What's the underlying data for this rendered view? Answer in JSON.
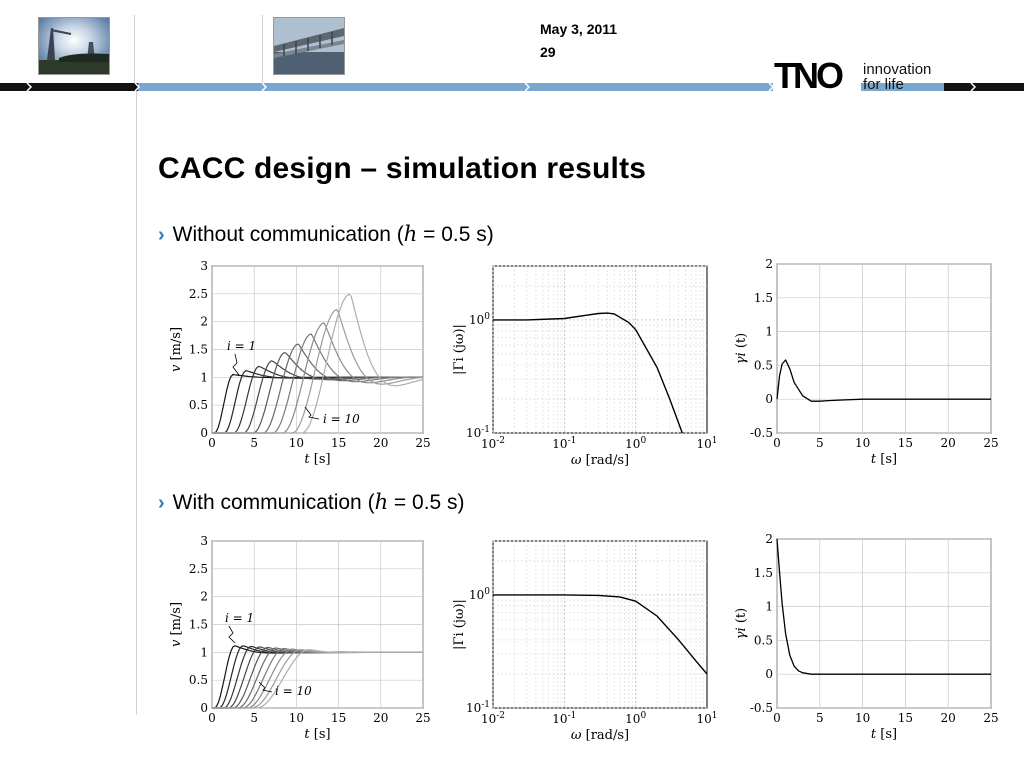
{
  "header": {
    "date": "May 3, 2011",
    "page_number": "29",
    "logo_mark": "TNO",
    "tagline_line1": "innovation",
    "tagline_line2": "for life",
    "accent_color": "#7aa7cf",
    "bar_color": "#111111"
  },
  "slide": {
    "title": "CACC design – simulation results",
    "bullets": [
      {
        "lead": "Without communication (",
        "math_var": "h",
        "tail": " = 0.5 s)"
      },
      {
        "lead": "With communication  (",
        "math_var": "h",
        "tail": " = 0.5 s)"
      }
    ]
  },
  "chart_data": [
    {
      "type": "line",
      "panel": "velocity",
      "condition": "without communication",
      "xlabel": "t [s]",
      "ylabel": "v [m/s]",
      "xlim": [
        0,
        25
      ],
      "ylim": [
        0,
        3
      ],
      "xticks": [
        "0",
        "5",
        "10",
        "15",
        "20",
        "25"
      ],
      "yticks": [
        "0",
        "0.5",
        "1",
        "1.5",
        "2",
        "2.5",
        "3"
      ],
      "annotations": [
        "i = 1",
        "i = 10"
      ],
      "grid": true,
      "series_count": 10,
      "peak_values": [
        1.05,
        1.12,
        1.2,
        1.3,
        1.45,
        1.6,
        1.78,
        1.98,
        2.22,
        2.5
      ],
      "steady_state": 1.0
    },
    {
      "type": "line",
      "panel": "string stability magnitude",
      "condition": "without communication",
      "xlabel": "ω [rad/s]",
      "ylabel": "|Γi (jω)|",
      "xscale": "log",
      "yscale": "log",
      "xlim": [
        0.01,
        10
      ],
      "ylim": [
        0.1,
        3
      ],
      "xticks": [
        "10^-2",
        "10^-1",
        "10^0",
        "10^1"
      ],
      "yticks": [
        "10^-1",
        "10^0"
      ],
      "grid": true,
      "x": [
        0.01,
        0.03,
        0.1,
        0.2,
        0.3,
        0.4,
        0.5,
        0.8,
        1,
        2,
        3,
        4.5
      ],
      "y": [
        1.0,
        1.0,
        1.03,
        1.1,
        1.14,
        1.15,
        1.13,
        0.95,
        0.82,
        0.38,
        0.2,
        0.1
      ]
    },
    {
      "type": "line",
      "panel": "impulse response",
      "condition": "without communication",
      "xlabel": "t [s]",
      "ylabel": "γi (t)",
      "xlim": [
        0,
        25
      ],
      "ylim": [
        -0.5,
        2
      ],
      "xticks": [
        "0",
        "5",
        "10",
        "15",
        "20",
        "25"
      ],
      "yticks": [
        "-0.5",
        "0",
        "0.5",
        "1",
        "1.5",
        "2"
      ],
      "grid": true,
      "x": [
        0,
        0.3,
        0.6,
        1.0,
        1.5,
        2,
        3,
        4,
        5,
        6,
        8,
        10,
        25
      ],
      "y": [
        0,
        0.35,
        0.52,
        0.58,
        0.45,
        0.25,
        0.05,
        -0.03,
        -0.03,
        -0.02,
        -0.01,
        0,
        0
      ]
    },
    {
      "type": "line",
      "panel": "velocity",
      "condition": "with communication",
      "xlabel": "t [s]",
      "ylabel": "v [m/s]",
      "xlim": [
        0,
        25
      ],
      "ylim": [
        0,
        3
      ],
      "xticks": [
        "0",
        "5",
        "10",
        "15",
        "20",
        "25"
      ],
      "yticks": [
        "0",
        "0.5",
        "1",
        "1.5",
        "2",
        "2.5",
        "3"
      ],
      "annotations": [
        "i = 1",
        "i = 10"
      ],
      "grid": true,
      "series_count": 10,
      "peak_values": [
        1.12,
        1.12,
        1.11,
        1.1,
        1.09,
        1.08,
        1.07,
        1.06,
        1.05,
        1.05
      ],
      "steady_state": 1.0
    },
    {
      "type": "line",
      "panel": "string stability magnitude",
      "condition": "with communication",
      "xlabel": "ω [rad/s]",
      "ylabel": "|Γi (jω)|",
      "xscale": "log",
      "yscale": "log",
      "xlim": [
        0.01,
        10
      ],
      "ylim": [
        0.1,
        3
      ],
      "xticks": [
        "10^-2",
        "10^-1",
        "10^0",
        "10^1"
      ],
      "yticks": [
        "10^-1",
        "10^0"
      ],
      "grid": true,
      "x": [
        0.01,
        0.1,
        0.3,
        0.6,
        1,
        2,
        4,
        7,
        10
      ],
      "y": [
        1.0,
        1.0,
        0.99,
        0.96,
        0.88,
        0.65,
        0.4,
        0.26,
        0.2
      ]
    },
    {
      "type": "line",
      "panel": "impulse response",
      "condition": "with communication",
      "xlabel": "t [s]",
      "ylabel": "γi (t)",
      "xlim": [
        0,
        25
      ],
      "ylim": [
        -0.5,
        2
      ],
      "xticks": [
        "0",
        "5",
        "10",
        "15",
        "20",
        "25"
      ],
      "yticks": [
        "-0.5",
        "0",
        "0.5",
        "1",
        "1.5",
        "2"
      ],
      "grid": true,
      "x": [
        0,
        0.3,
        0.6,
        1.0,
        1.5,
        2,
        2.5,
        3,
        4,
        25
      ],
      "y": [
        2.0,
        1.5,
        1.05,
        0.6,
        0.28,
        0.12,
        0.05,
        0.02,
        0,
        0
      ]
    }
  ]
}
